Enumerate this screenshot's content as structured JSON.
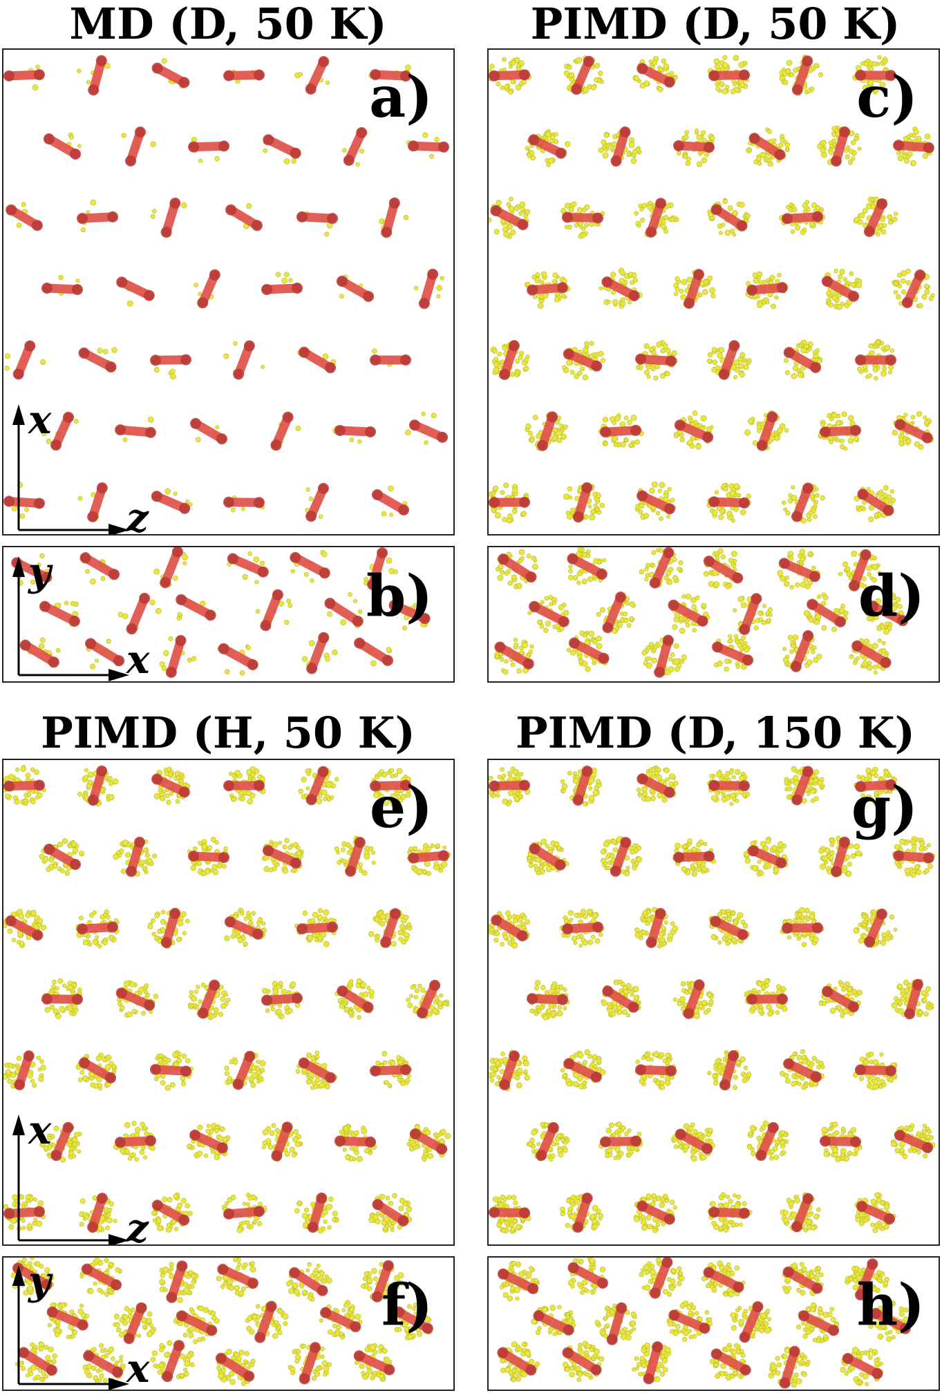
{
  "titles": {
    "md_d_50": "MD (D, 50 K)",
    "pimd_d_50": "PIMD (D, 50 K)",
    "pimd_h_50": "PIMD (H, 50 K)",
    "pimd_d_150": "PIMD (D, 150 K)"
  },
  "panels": {
    "a": "a)",
    "b": "b)",
    "c": "c)",
    "d": "d)",
    "e": "e)",
    "f": "f)",
    "g": "g)",
    "h": "h)"
  },
  "axes": {
    "x": "x",
    "y": "y",
    "z": "z"
  },
  "colors": {
    "molecule": "#e0524a",
    "molecule_dark": "#b73a34",
    "bead": "#e8e640",
    "bead_edge": "#b8b61e",
    "frame": "#222222"
  },
  "orientation_codes": {
    "xz_rows": [
      "HVDHVH",
      "DVHDVH",
      "DHVDHV",
      "HDVHDV",
      "VDHVDH",
      "VHDVHD",
      "HVDHVD"
    ],
    "xy_row_top": "DDVDDV",
    "xy_row_mid": "DVDVDD",
    "xy_row_bot": "DDVDVD"
  },
  "bead_cloud_level": {
    "a": 0.05,
    "b": 0.1,
    "c": 0.55,
    "d": 0.5,
    "e": 0.6,
    "f": 0.6,
    "g": 0.75,
    "h": 0.7
  }
}
